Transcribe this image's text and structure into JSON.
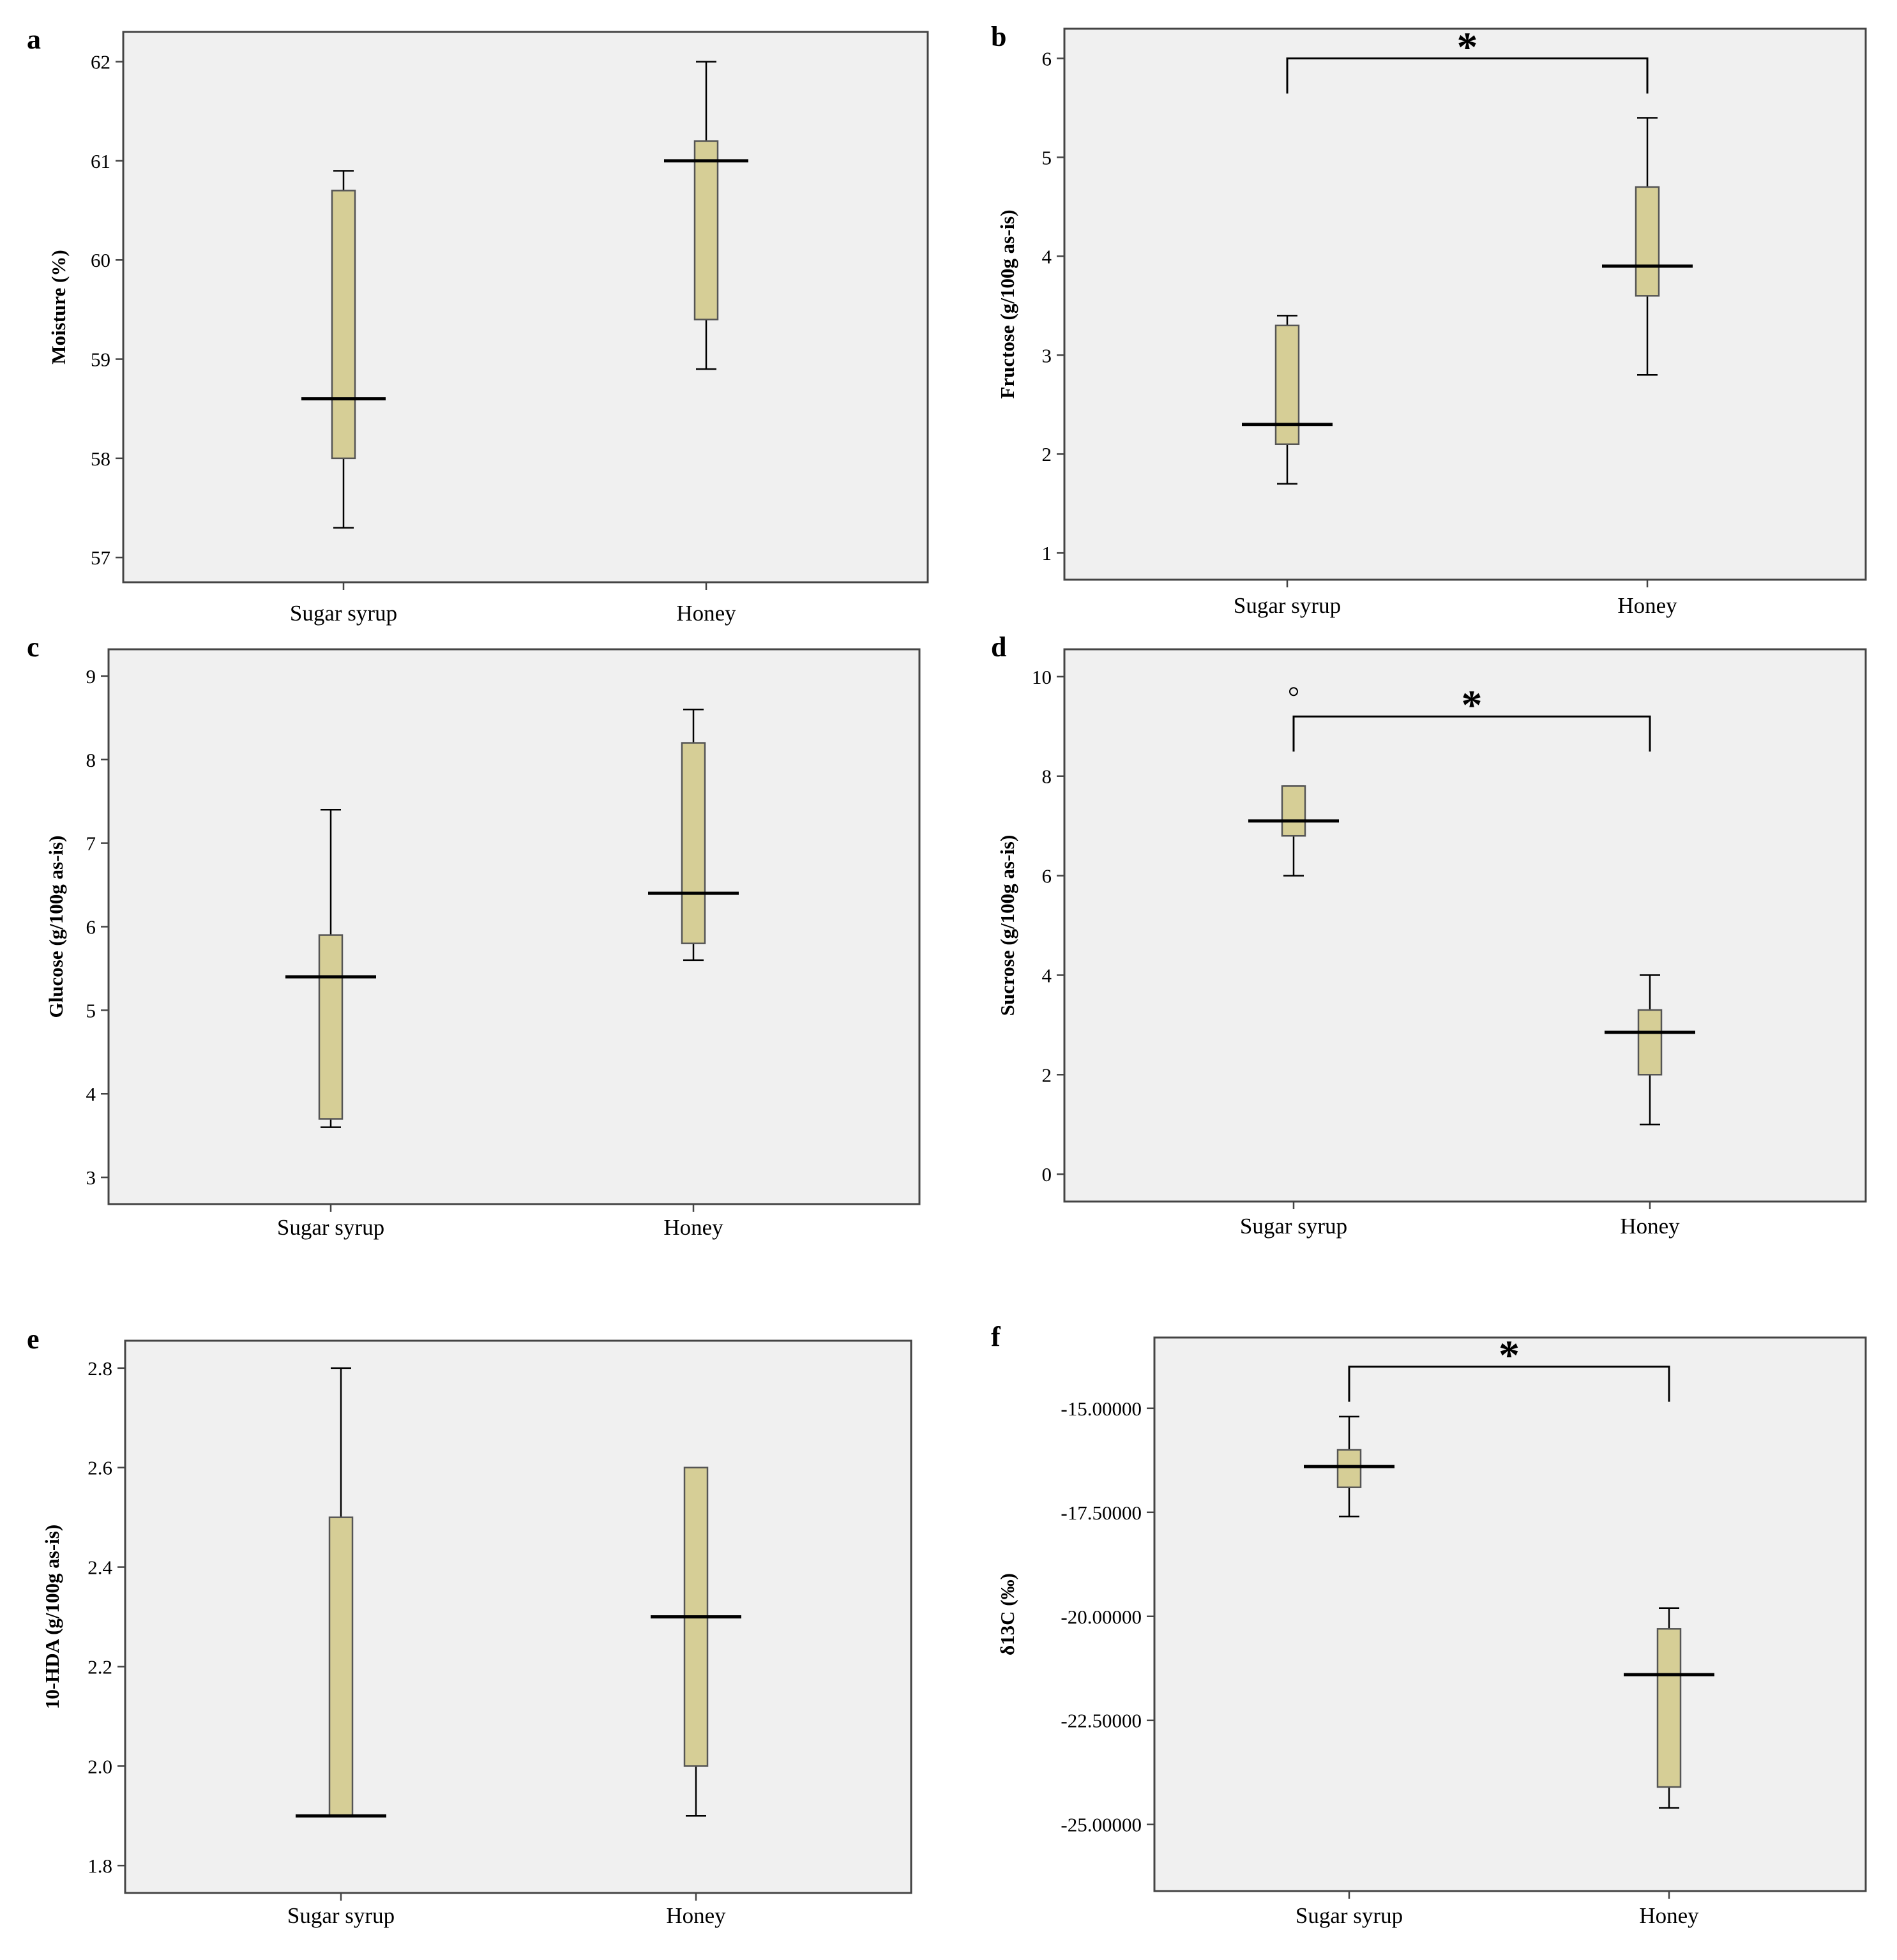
{
  "figure": {
    "colors": {
      "plot_background": "#f0f0f0",
      "box_fill": "#d6ce96",
      "box_stroke": "#555555",
      "frame": "#444444",
      "median": "#000000"
    }
  },
  "chart_data": [
    {
      "type": "boxplot",
      "panel": "a",
      "ylabel": "Moisture (%)",
      "categories": [
        "Sugar syrup",
        "Honey"
      ],
      "ylim": [
        56.75,
        62.3
      ],
      "yticks": [
        57,
        58,
        59,
        60,
        61,
        62
      ],
      "ytick_labels": [
        "57",
        "58",
        "59",
        "60",
        "61",
        "62"
      ],
      "grid": false,
      "boxes": [
        {
          "category": "Sugar syrup",
          "min": 57.3,
          "q1": 58.0,
          "median": 58.6,
          "q3": 60.7,
          "max": 60.9
        },
        {
          "category": "Honey",
          "min": 58.9,
          "q1": 59.4,
          "median": 61.0,
          "q3": 61.2,
          "max": 62.0
        }
      ],
      "outliers": [],
      "significance": []
    },
    {
      "type": "boxplot",
      "panel": "b",
      "ylabel": "Fructose (g/100g as-is)",
      "categories": [
        "Sugar syrup",
        "Honey"
      ],
      "ylim": [
        0.73,
        6.3
      ],
      "yticks": [
        1,
        2,
        3,
        4,
        5,
        6
      ],
      "ytick_labels": [
        "1",
        "2",
        "3",
        "4",
        "5",
        "6"
      ],
      "grid": false,
      "boxes": [
        {
          "category": "Sugar syrup",
          "min": 1.7,
          "q1": 2.1,
          "median": 2.3,
          "q3": 3.3,
          "max": 3.4
        },
        {
          "category": "Honey",
          "min": 2.8,
          "q1": 3.6,
          "median": 3.9,
          "q3": 4.7,
          "max": 5.4
        }
      ],
      "outliers": [],
      "significance": [
        {
          "between": [
            "Sugar syrup",
            "Honey"
          ],
          "label": "*",
          "y": 6.0
        }
      ]
    },
    {
      "type": "boxplot",
      "panel": "c",
      "ylabel": "Glucose (g/100g as-is)",
      "categories": [
        "Sugar syrup",
        "Honey"
      ],
      "ylim": [
        2.68,
        9.32
      ],
      "yticks": [
        3,
        4,
        5,
        6,
        7,
        8,
        9
      ],
      "ytick_labels": [
        "3",
        "4",
        "5",
        "6",
        "7",
        "8",
        "9"
      ],
      "grid": false,
      "boxes": [
        {
          "category": "Sugar syrup",
          "min": 3.6,
          "q1": 3.7,
          "median": 5.4,
          "q3": 5.9,
          "max": 7.4
        },
        {
          "category": "Honey",
          "min": 5.6,
          "q1": 5.8,
          "median": 6.4,
          "q3": 8.2,
          "max": 8.6
        }
      ],
      "outliers": [],
      "significance": []
    },
    {
      "type": "boxplot",
      "panel": "d",
      "ylabel": "Sucrose (g/100g as-is)",
      "categories": [
        "Sugar syrup",
        "Honey"
      ],
      "ylim": [
        -0.55,
        10.55
      ],
      "yticks": [
        0,
        2,
        4,
        6,
        8,
        10
      ],
      "ytick_labels": [
        "0",
        "2",
        "4",
        "6",
        "8",
        "10"
      ],
      "grid": false,
      "boxes": [
        {
          "category": "Sugar syrup",
          "min": 6.0,
          "q1": 6.8,
          "median": 7.1,
          "q3": 7.8,
          "max": 7.8
        },
        {
          "category": "Honey",
          "min": 1.0,
          "q1": 2.0,
          "median": 2.85,
          "q3": 3.3,
          "max": 4.0
        }
      ],
      "outliers": [
        {
          "category": "Sugar syrup",
          "value": 9.7
        }
      ],
      "significance": [
        {
          "between": [
            "Sugar syrup",
            "Honey"
          ],
          "label": "*",
          "y": 9.2
        }
      ]
    },
    {
      "type": "boxplot",
      "panel": "e",
      "ylabel": "10-HDA (g/100g as-is)",
      "categories": [
        "Sugar syrup",
        "Honey"
      ],
      "ylim": [
        1.745,
        2.855
      ],
      "yticks": [
        1.8,
        2.0,
        2.2,
        2.4,
        2.6,
        2.8
      ],
      "ytick_labels": [
        "1.8",
        "2.0",
        "2.2",
        "2.4",
        "2.6",
        "2.8"
      ],
      "grid": false,
      "boxes": [
        {
          "category": "Sugar syrup",
          "min": 1.9,
          "q1": 1.9,
          "median": 1.9,
          "q3": 2.5,
          "max": 2.8
        },
        {
          "category": "Honey",
          "min": 1.9,
          "q1": 2.0,
          "median": 2.3,
          "q3": 2.6,
          "max": 2.6
        }
      ],
      "outliers": [],
      "significance": []
    },
    {
      "type": "boxplot",
      "panel": "f",
      "ylabel": "δ13C (‰)",
      "categories": [
        "Sugar syrup",
        "Honey"
      ],
      "ylim": [
        -26.6,
        -13.3
      ],
      "yticks": [
        -25,
        -22.5,
        -20,
        -17.5,
        -15
      ],
      "ytick_labels": [
        "-25.00000",
        "-22.50000",
        "-20.00000",
        "-17.50000",
        "-15.00000"
      ],
      "grid": false,
      "boxes": [
        {
          "category": "Sugar syrup",
          "min": -17.6,
          "q1": -16.9,
          "median": -16.4,
          "q3": -16.0,
          "max": -15.2
        },
        {
          "category": "Honey",
          "min": -24.6,
          "q1": -24.1,
          "median": -21.4,
          "q3": -20.3,
          "max": -19.8
        }
      ],
      "outliers": [],
      "significance": [
        {
          "between": [
            "Sugar syrup",
            "Honey"
          ],
          "label": "*",
          "y": -14.0
        }
      ]
    }
  ]
}
